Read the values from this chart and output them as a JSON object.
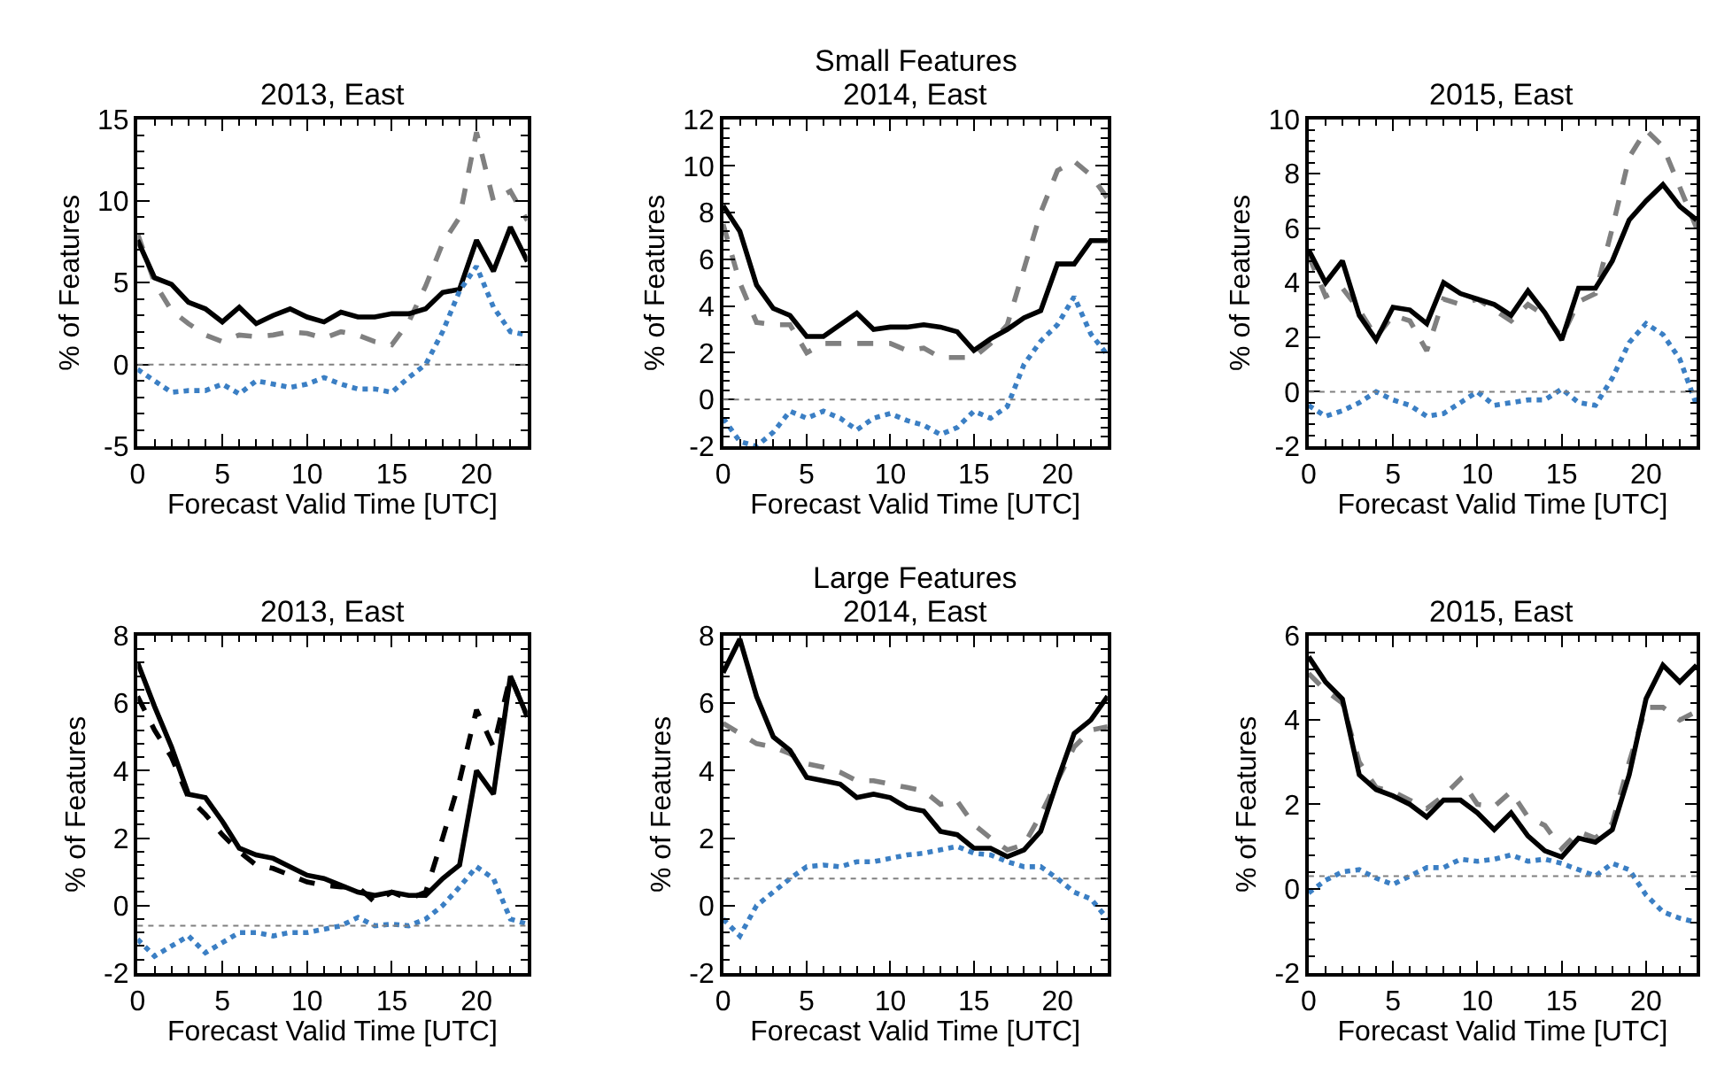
{
  "chart_data": [
    {
      "type": "line",
      "title": "2013, East",
      "xlabel": "Forecast Valid Time [UTC]",
      "ylabel": "% of Features",
      "x": [
        0,
        1,
        2,
        3,
        4,
        5,
        6,
        7,
        8,
        9,
        10,
        11,
        12,
        13,
        14,
        15,
        16,
        17,
        18,
        19,
        20,
        21,
        22,
        23
      ],
      "xlim": [
        0,
        23
      ],
      "xticks": [
        0,
        5,
        10,
        15,
        20
      ],
      "ylim": [
        -5,
        15
      ],
      "yticks": [
        -5,
        0,
        5,
        10,
        15
      ],
      "ref_lines": [
        {
          "axis": "y",
          "value": 0,
          "color": "#808080",
          "line_style": "dotted"
        }
      ],
      "series": [
        {
          "color": "#808080",
          "line_style": "dashed",
          "values": [
            8.0,
            5.0,
            3.3,
            2.5,
            1.8,
            1.4,
            1.8,
            1.7,
            1.8,
            2.0,
            1.9,
            1.6,
            2.0,
            1.8,
            1.4,
            1.2,
            2.6,
            4.8,
            7.4,
            9.0,
            14.2,
            10.0,
            10.6,
            8.8
          ]
        },
        {
          "color": "#000000",
          "line_style": "solid",
          "values": [
            7.6,
            5.3,
            4.9,
            3.8,
            3.4,
            2.6,
            3.5,
            2.5,
            3.0,
            3.4,
            2.9,
            2.6,
            3.2,
            2.9,
            2.9,
            3.1,
            3.1,
            3.4,
            4.4,
            4.6,
            7.6,
            5.7,
            8.4,
            6.3
          ]
        },
        {
          "color": "#3b7fc4",
          "line_style": "dotted",
          "values": [
            -0.3,
            -1.0,
            -1.7,
            -1.6,
            -1.6,
            -1.2,
            -1.8,
            -1.0,
            -1.2,
            -1.4,
            -1.2,
            -0.8,
            -1.2,
            -1.5,
            -1.5,
            -1.7,
            -0.8,
            0.0,
            2.0,
            4.5,
            6.0,
            3.5,
            2.0,
            1.8
          ]
        }
      ]
    },
    {
      "type": "line",
      "title": "2014, East",
      "annotations": [
        "Small Features"
      ],
      "xlabel": "Forecast Valid Time [UTC]",
      "ylabel": "% of Features",
      "x": [
        0,
        1,
        2,
        3,
        4,
        5,
        6,
        7,
        8,
        9,
        10,
        11,
        12,
        13,
        14,
        15,
        16,
        17,
        18,
        19,
        20,
        21,
        22,
        23
      ],
      "xlim": [
        0,
        23
      ],
      "xticks": [
        0,
        5,
        10,
        15,
        20
      ],
      "ylim": [
        -2,
        12
      ],
      "yticks": [
        -2,
        0,
        2,
        4,
        6,
        8,
        10,
        12
      ],
      "ref_lines": [
        {
          "axis": "y",
          "value": 0,
          "color": "#808080",
          "line_style": "dotted"
        }
      ],
      "series": [
        {
          "color": "#808080",
          "line_style": "dashed",
          "values": [
            7.5,
            5.0,
            3.3,
            3.2,
            3.2,
            2.0,
            2.4,
            2.4,
            2.4,
            2.4,
            2.4,
            2.1,
            2.2,
            1.8,
            1.8,
            1.8,
            2.4,
            3.2,
            5.6,
            8.0,
            9.8,
            10.2,
            9.6,
            8.6
          ]
        },
        {
          "color": "#000000",
          "line_style": "solid",
          "values": [
            8.3,
            7.2,
            4.9,
            3.9,
            3.6,
            2.7,
            2.7,
            3.2,
            3.7,
            3.0,
            3.1,
            3.1,
            3.2,
            3.1,
            2.9,
            2.1,
            2.6,
            3.0,
            3.5,
            3.8,
            5.8,
            5.8,
            6.8,
            6.8
          ]
        },
        {
          "color": "#3b7fc4",
          "line_style": "dotted",
          "values": [
            -0.8,
            -1.8,
            -2.0,
            -1.4,
            -0.5,
            -0.8,
            -0.5,
            -0.8,
            -1.3,
            -0.8,
            -0.6,
            -0.9,
            -1.1,
            -1.5,
            -1.2,
            -0.5,
            -0.8,
            -0.3,
            1.5,
            2.5,
            3.2,
            4.4,
            2.8,
            1.9
          ]
        }
      ]
    },
    {
      "type": "line",
      "title": "2015, East",
      "xlabel": "Forecast Valid Time [UTC]",
      "ylabel": "% of Features",
      "x": [
        0,
        1,
        2,
        3,
        4,
        5,
        6,
        7,
        8,
        9,
        10,
        11,
        12,
        13,
        14,
        15,
        16,
        17,
        18,
        19,
        20,
        21,
        22,
        23
      ],
      "xlim": [
        0,
        23
      ],
      "xticks": [
        0,
        5,
        10,
        15,
        20
      ],
      "ylim": [
        -2,
        10
      ],
      "yticks": [
        -2,
        0,
        2,
        4,
        6,
        8,
        10
      ],
      "ref_lines": [
        {
          "axis": "y",
          "value": 0,
          "color": "#808080",
          "line_style": "dotted"
        }
      ],
      "series": [
        {
          "color": "#808080",
          "line_style": "dashed",
          "values": [
            5.0,
            3.5,
            3.8,
            3.0,
            2.0,
            2.8,
            2.6,
            1.5,
            3.4,
            3.2,
            3.4,
            3.0,
            2.6,
            3.2,
            2.8,
            2.0,
            3.3,
            3.6,
            6.0,
            8.6,
            9.6,
            9.0,
            7.5,
            6.0
          ]
        },
        {
          "color": "#000000",
          "line_style": "solid",
          "values": [
            5.2,
            4.0,
            4.8,
            2.8,
            1.9,
            3.1,
            3.0,
            2.5,
            4.0,
            3.6,
            3.4,
            3.2,
            2.8,
            3.7,
            2.9,
            1.9,
            3.8,
            3.8,
            4.8,
            6.3,
            7.0,
            7.6,
            6.8,
            6.3
          ]
        },
        {
          "color": "#3b7fc4",
          "line_style": "dotted",
          "values": [
            -0.5,
            -0.9,
            -0.7,
            -0.4,
            0.0,
            -0.3,
            -0.5,
            -0.9,
            -0.8,
            -0.4,
            0.0,
            -0.5,
            -0.4,
            -0.3,
            -0.3,
            0.1,
            -0.4,
            -0.5,
            0.5,
            1.8,
            2.5,
            2.1,
            1.2,
            -0.5
          ]
        }
      ]
    },
    {
      "type": "line",
      "title": "2013, East",
      "xlabel": "Forecast Valid Time [UTC]",
      "ylabel": "% of Features",
      "x": [
        0,
        1,
        2,
        3,
        4,
        5,
        6,
        7,
        8,
        9,
        10,
        11,
        12,
        13,
        14,
        15,
        16,
        17,
        18,
        19,
        20,
        21,
        22,
        23
      ],
      "xlim": [
        0,
        23
      ],
      "xticks": [
        0,
        5,
        10,
        15,
        20
      ],
      "ylim": [
        -2,
        8
      ],
      "yticks": [
        -2,
        0,
        2,
        4,
        6,
        8
      ],
      "ref_lines": [
        {
          "axis": "y",
          "value": -0.6,
          "color": "#808080",
          "line_style": "dotted"
        }
      ],
      "series": [
        {
          "color": "#000000",
          "line_style": "dashed",
          "values": [
            6.2,
            5.2,
            4.4,
            3.2,
            2.7,
            2.1,
            1.6,
            1.2,
            1.1,
            0.9,
            0.7,
            0.6,
            0.55,
            0.55,
            0.1,
            0.4,
            0.2,
            0.4,
            2.0,
            3.7,
            5.8,
            4.7,
            6.8,
            5.6
          ]
        },
        {
          "color": "#000000",
          "line_style": "solid",
          "values": [
            7.2,
            5.9,
            4.7,
            3.3,
            3.2,
            2.5,
            1.7,
            1.5,
            1.4,
            1.15,
            0.9,
            0.8,
            0.6,
            0.4,
            0.3,
            0.4,
            0.3,
            0.3,
            0.8,
            1.2,
            4.0,
            3.3,
            6.8,
            5.6
          ]
        },
        {
          "color": "#3b7fc4",
          "line_style": "dotted",
          "values": [
            -1.0,
            -1.5,
            -1.2,
            -0.9,
            -1.4,
            -1.1,
            -0.8,
            -0.8,
            -0.9,
            -0.8,
            -0.8,
            -0.7,
            -0.6,
            -0.35,
            -0.6,
            -0.55,
            -0.6,
            -0.4,
            0.0,
            0.55,
            1.15,
            0.8,
            -0.4,
            -0.55
          ]
        }
      ]
    },
    {
      "type": "line",
      "title": "2014, East",
      "annotations": [
        "Large Features"
      ],
      "xlabel": "Forecast Valid Time [UTC]",
      "ylabel": "% of Features",
      "x": [
        0,
        1,
        2,
        3,
        4,
        5,
        6,
        7,
        8,
        9,
        10,
        11,
        12,
        13,
        14,
        15,
        16,
        17,
        18,
        19,
        20,
        21,
        22,
        23
      ],
      "xlim": [
        0,
        23
      ],
      "xticks": [
        0,
        5,
        10,
        15,
        20
      ],
      "ylim": [
        -2,
        8
      ],
      "yticks": [
        -2,
        0,
        2,
        4,
        6,
        8
      ],
      "ref_lines": [
        {
          "axis": "y",
          "value": 0.8,
          "color": "#808080",
          "line_style": "dotted"
        }
      ],
      "series": [
        {
          "color": "#808080",
          "line_style": "dashed",
          "values": [
            5.4,
            5.1,
            4.8,
            4.7,
            4.5,
            4.2,
            4.1,
            3.95,
            3.7,
            3.7,
            3.6,
            3.5,
            3.4,
            3.0,
            3.1,
            2.4,
            2.0,
            1.65,
            1.8,
            2.7,
            3.7,
            4.7,
            5.2,
            5.3
          ]
        },
        {
          "color": "#000000",
          "line_style": "solid",
          "values": [
            6.9,
            7.9,
            6.2,
            5.0,
            4.6,
            3.8,
            3.7,
            3.6,
            3.2,
            3.3,
            3.2,
            2.9,
            2.8,
            2.2,
            2.1,
            1.7,
            1.7,
            1.45,
            1.65,
            2.2,
            3.7,
            5.1,
            5.5,
            6.2
          ]
        },
        {
          "color": "#3b7fc4",
          "line_style": "dotted",
          "values": [
            -0.4,
            -0.9,
            0.0,
            0.4,
            0.8,
            1.15,
            1.2,
            1.15,
            1.3,
            1.3,
            1.4,
            1.5,
            1.55,
            1.65,
            1.75,
            1.55,
            1.5,
            1.3,
            1.15,
            1.15,
            0.8,
            0.4,
            0.2,
            -0.4
          ]
        }
      ]
    },
    {
      "type": "line",
      "title": "2015, East",
      "xlabel": "Forecast Valid Time [UTC]",
      "ylabel": "% of Features",
      "x": [
        0,
        1,
        2,
        3,
        4,
        5,
        6,
        7,
        8,
        9,
        10,
        11,
        12,
        13,
        14,
        15,
        16,
        17,
        18,
        19,
        20,
        21,
        22,
        23
      ],
      "xlim": [
        0,
        23
      ],
      "xticks": [
        0,
        5,
        10,
        15,
        20
      ],
      "ylim": [
        -2,
        6
      ],
      "yticks": [
        -2,
        0,
        2,
        4,
        6
      ],
      "ref_lines": [
        {
          "axis": "y",
          "value": 0.3,
          "color": "#808080",
          "line_style": "dotted"
        }
      ],
      "series": [
        {
          "color": "#808080",
          "line_style": "dashed",
          "values": [
            5.1,
            4.7,
            4.4,
            3.0,
            2.4,
            2.3,
            2.1,
            1.9,
            2.2,
            2.6,
            2.0,
            1.95,
            2.3,
            1.7,
            1.5,
            0.95,
            1.35,
            1.2,
            1.55,
            3.0,
            4.3,
            4.3,
            4.0,
            4.2
          ]
        },
        {
          "color": "#000000",
          "line_style": "solid",
          "values": [
            5.5,
            4.9,
            4.5,
            2.7,
            2.35,
            2.2,
            2.0,
            1.7,
            2.1,
            2.1,
            1.8,
            1.4,
            1.8,
            1.25,
            0.9,
            0.75,
            1.2,
            1.1,
            1.4,
            2.7,
            4.5,
            5.3,
            4.9,
            5.3
          ]
        },
        {
          "color": "#3b7fc4",
          "line_style": "dotted",
          "values": [
            -0.1,
            0.2,
            0.4,
            0.45,
            0.25,
            0.1,
            0.3,
            0.5,
            0.5,
            0.7,
            0.65,
            0.7,
            0.8,
            0.65,
            0.7,
            0.6,
            0.45,
            0.3,
            0.6,
            0.45,
            -0.15,
            -0.55,
            -0.7,
            -0.8
          ]
        }
      ]
    }
  ]
}
